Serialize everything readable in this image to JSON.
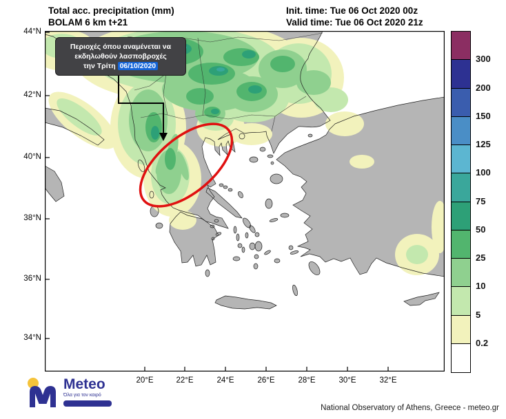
{
  "colors": {
    "land": "#b5b5b5",
    "sea": "#ffffff",
    "coast": "#1f1f1f",
    "annotation-bg": "#424245",
    "annotation-date-bg": "#1565d8",
    "highlight-red": "#e01010",
    "brand-blue": "#2e3192",
    "brand-yellow": "#f5c33b"
  },
  "header": {
    "title_line1": "Total acc. precipitation (mm)",
    "title_line2": "BOLAM 6 km t+21",
    "init_time": "Init. time: Tue 06 Oct 2020 00z",
    "valid_time": "Valid time: Tue 06 Oct 2020 21z"
  },
  "map": {
    "lat_labels": [
      "44°N",
      "42°N",
      "40°N",
      "38°N",
      "36°N",
      "34°N"
    ],
    "lon_labels": [
      "20°E",
      "22°E",
      "24°E",
      "26°E",
      "28°E",
      "30°E",
      "32°E"
    ],
    "annotation": {
      "line1": "Περιοχές όπου αναμένεται να",
      "line2": "εκδηλωθούν λασποβροχές",
      "line3_prefix": "την Τρίτη",
      "line3_date": "06/10/2020"
    }
  },
  "legend": {
    "labels": [
      "300",
      "200",
      "150",
      "125",
      "100",
      "75",
      "50",
      "25",
      "10",
      "5",
      "0.2"
    ],
    "colors": [
      "#8b2e62",
      "#2d3192",
      "#3a5dae",
      "#4a8ec6",
      "#5cb6d1",
      "#3aa79b",
      "#2da077",
      "#52b56e",
      "#8fd08f",
      "#c3e8ae",
      "#f2f2bc",
      "#ffffff"
    ]
  },
  "footer": {
    "logo_name": "Meteo",
    "logo_subtitle": "Όλα για τον καιρό",
    "attribution": "National Observatory of Athens, Greece - meteo.gr"
  }
}
